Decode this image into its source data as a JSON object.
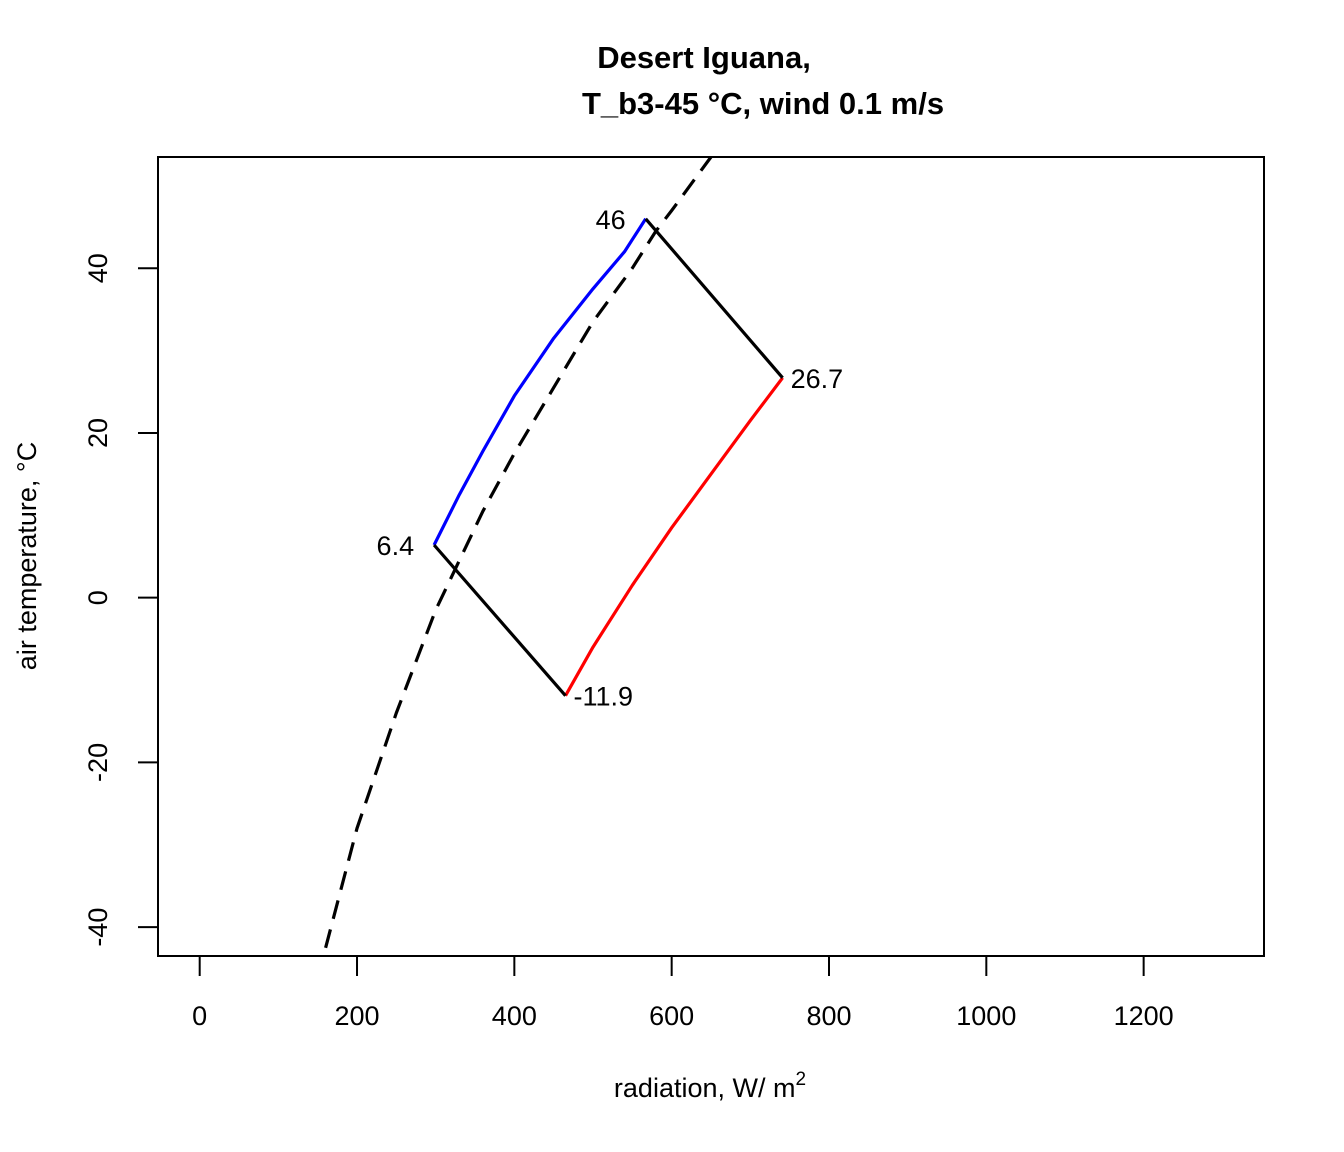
{
  "chart_data": {
    "type": "line",
    "title_line1": "Desert Iguana,",
    "title_line2": "T_b3-45 °C, wind 0.1 m/s",
    "xlabel": "radiation, W/ m",
    "xlabel_sup": "2",
    "ylabel": "air temperature, °C",
    "xlim": [
      -53,
      1353
    ],
    "ylim": [
      -43.5,
      53.5
    ],
    "xticks": [
      0,
      200,
      400,
      600,
      800,
      1000,
      1200
    ],
    "yticks": [
      -40,
      -20,
      0,
      20,
      40
    ],
    "grid": false,
    "legend": "none",
    "series": [
      {
        "color": "#000000",
        "dash": "dashed",
        "points": [
          [
            160,
            -42.5
          ],
          [
            200,
            -28
          ],
          [
            250,
            -14
          ],
          [
            300,
            -1.5
          ],
          [
            330,
            4.5
          ],
          [
            360,
            10.5
          ],
          [
            400,
            17.5
          ],
          [
            450,
            25.5
          ],
          [
            500,
            33.5
          ],
          [
            550,
            40
          ],
          [
            580,
            44.5
          ],
          [
            600,
            47
          ],
          [
            650,
            53.5
          ]
        ]
      },
      {
        "color": "#0000ff",
        "dash": "solid",
        "points": [
          [
            298,
            6.4
          ],
          [
            330,
            12.5
          ],
          [
            360,
            17.8
          ],
          [
            400,
            24.5
          ],
          [
            450,
            31.5
          ],
          [
            500,
            37.5
          ],
          [
            540,
            42
          ],
          [
            567,
            46
          ]
        ]
      },
      {
        "color": "#ff0000",
        "dash": "solid",
        "points": [
          [
            465,
            -11.9
          ],
          [
            500,
            -6
          ],
          [
            550,
            1.5
          ],
          [
            600,
            8.5
          ],
          [
            650,
            15
          ],
          [
            700,
            21.5
          ],
          [
            741,
            26.7
          ]
        ]
      },
      {
        "color": "#000000",
        "dash": "solid",
        "points": [
          [
            567,
            46
          ],
          [
            741,
            26.7
          ]
        ]
      },
      {
        "color": "#000000",
        "dash": "solid",
        "points": [
          [
            298,
            6.4
          ],
          [
            465,
            -11.9
          ]
        ]
      }
    ],
    "point_labels": [
      {
        "text": "46",
        "x": 567,
        "y": 46,
        "pos": "left"
      },
      {
        "text": "26.7",
        "x": 741,
        "y": 26.7,
        "pos": "right"
      },
      {
        "text": "6.4",
        "x": 298,
        "y": 6.4,
        "pos": "left"
      },
      {
        "text": "-11.9",
        "x": 465,
        "y": -11.9,
        "pos": "right"
      }
    ]
  }
}
